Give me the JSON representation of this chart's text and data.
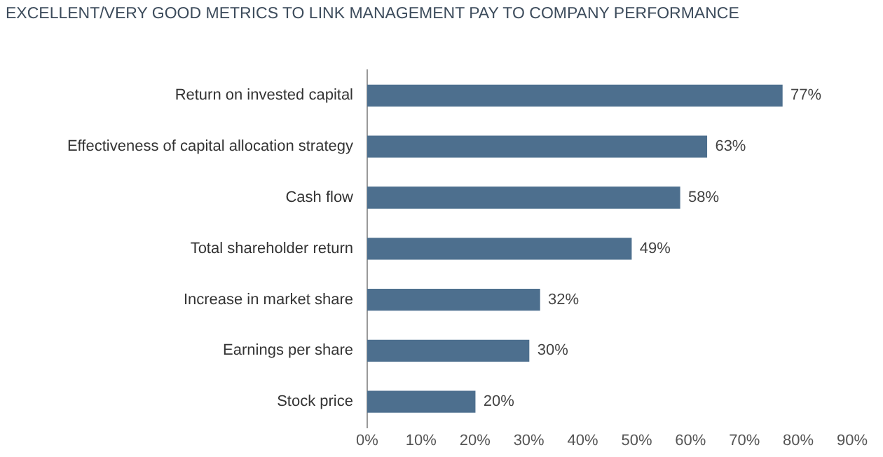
{
  "chart_data": {
    "type": "bar",
    "orientation": "horizontal",
    "title": "EXCELLENT/VERY GOOD METRICS TO LINK MANAGEMENT PAY TO COMPANY PERFORMANCE",
    "categories": [
      "Return on invested capital",
      "Effectiveness of capital allocation strategy",
      "Cash flow",
      "Total shareholder return",
      "Increase in market share",
      "Earnings per share",
      "Stock price"
    ],
    "values": [
      77,
      63,
      58,
      49,
      32,
      30,
      20
    ],
    "value_labels": [
      "77%",
      "63%",
      "58%",
      "49%",
      "32%",
      "30%",
      "20%"
    ],
    "color": "#4d6f8e",
    "xlim": [
      0,
      90
    ],
    "xticks": [
      {
        "value": 0,
        "label": "0%"
      },
      {
        "value": 10,
        "label": "10%"
      },
      {
        "value": 20,
        "label": "20%"
      },
      {
        "value": 30,
        "label": "30%"
      },
      {
        "value": 40,
        "label": "40%"
      },
      {
        "value": 50,
        "label": "50%"
      },
      {
        "value": 60,
        "label": "60%"
      },
      {
        "value": 70,
        "label": "70%"
      },
      {
        "value": 80,
        "label": "80%"
      },
      {
        "value": 90,
        "label": "90%"
      }
    ],
    "grid": false,
    "legend": false
  }
}
